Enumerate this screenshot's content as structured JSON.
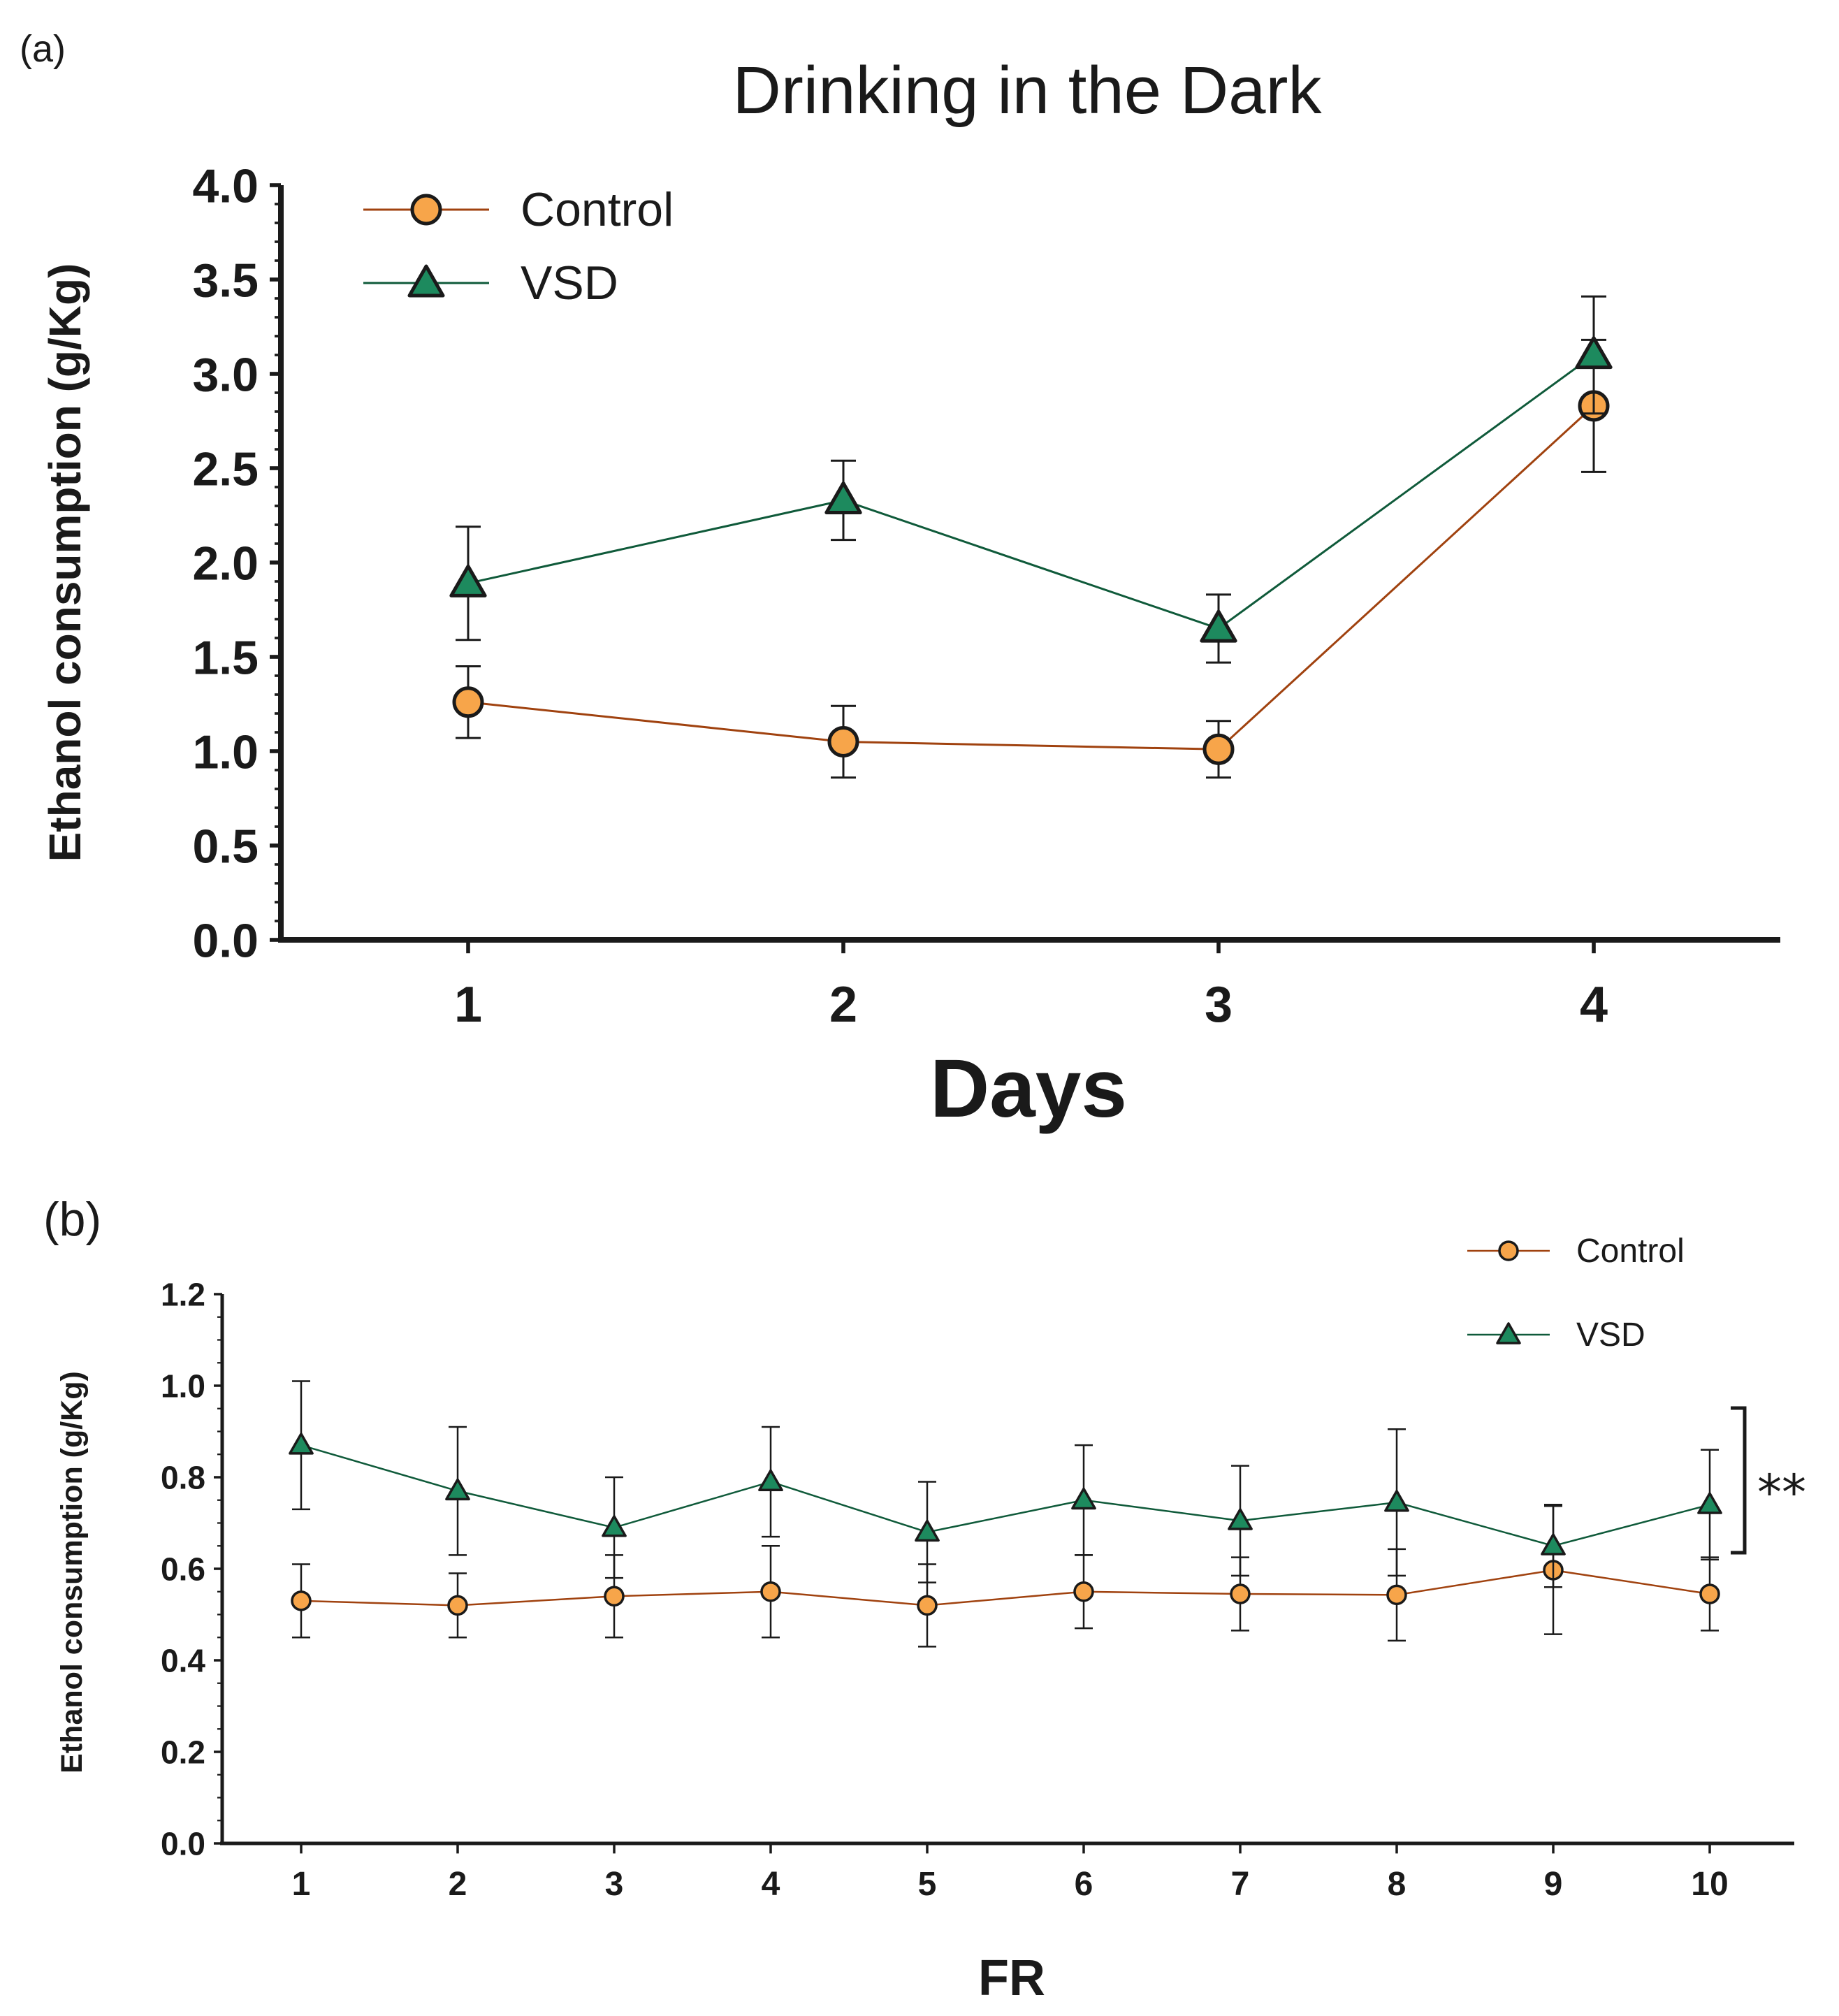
{
  "colors": {
    "control_fill": "#F7A54A",
    "control_line": "#A0420F",
    "vsd_fill": "#1D8A5E",
    "vsd_line": "#0F5A3A",
    "ink": "#1a1a1a"
  },
  "chart_data": [
    {
      "panel": "(a)",
      "type": "line",
      "title": "Drinking in the Dark",
      "xlabel": "Days",
      "ylabel": "Ethanol consumption (g/Kg)",
      "categories": [
        "1",
        "2",
        "3",
        "4"
      ],
      "yticks": [
        "0.0",
        "0.5",
        "1.0",
        "1.5",
        "2.0",
        "2.5",
        "3.0",
        "3.5",
        "4.0"
      ],
      "ylim": [
        0,
        4
      ],
      "legend_position": "top-left",
      "series": [
        {
          "name": "Control",
          "marker": "circle",
          "values": [
            1.26,
            1.05,
            1.01,
            2.83
          ],
          "errors": [
            0.19,
            0.19,
            0.15,
            0.35
          ]
        },
        {
          "name": "VSD",
          "marker": "triangle",
          "values": [
            1.89,
            2.33,
            1.65,
            3.1
          ],
          "errors": [
            0.3,
            0.21,
            0.18,
            0.31
          ]
        }
      ]
    },
    {
      "panel": "(b)",
      "type": "line",
      "title": "",
      "xlabel": "FR",
      "ylabel": "Ethanol consumption (g/Kg)",
      "categories": [
        "1",
        "2",
        "3",
        "4",
        "5",
        "6",
        "7",
        "8",
        "9",
        "10"
      ],
      "yticks": [
        "0.0",
        "0.2",
        "0.4",
        "0.6",
        "0.8",
        "1.0",
        "1.2"
      ],
      "ylim": [
        0,
        1.2
      ],
      "legend_position": "top-right",
      "significance": "**",
      "series": [
        {
          "name": "Control",
          "marker": "circle",
          "values": [
            0.53,
            0.52,
            0.54,
            0.55,
            0.52,
            0.55,
            0.545,
            0.543,
            0.597,
            0.545
          ],
          "errors": [
            0.08,
            0.07,
            0.09,
            0.1,
            0.09,
            0.08,
            0.08,
            0.1,
            0.14,
            0.08
          ]
        },
        {
          "name": "VSD",
          "marker": "triangle",
          "values": [
            0.87,
            0.77,
            0.69,
            0.79,
            0.68,
            0.75,
            0.705,
            0.745,
            0.65,
            0.74
          ],
          "errors": [
            0.14,
            0.14,
            0.11,
            0.12,
            0.11,
            0.12,
            0.12,
            0.16,
            0.09,
            0.12
          ]
        }
      ]
    }
  ]
}
